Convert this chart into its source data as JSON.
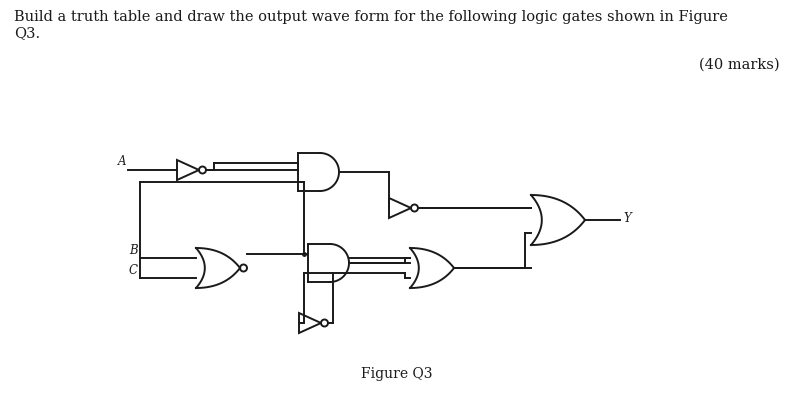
{
  "title_text": "Build a truth table and draw the output wave form for the following logic gates shown in Figure\nQ3.",
  "marks_text": "(40 marks)",
  "figure_label": "Figure Q3",
  "bg_color": "#ffffff",
  "line_color": "#1a1a1a",
  "lw": 1.4,
  "font_size_title": 10.5,
  "font_size_label": 10,
  "font_size_marks": 10.5,
  "font_size_io": 8.5
}
